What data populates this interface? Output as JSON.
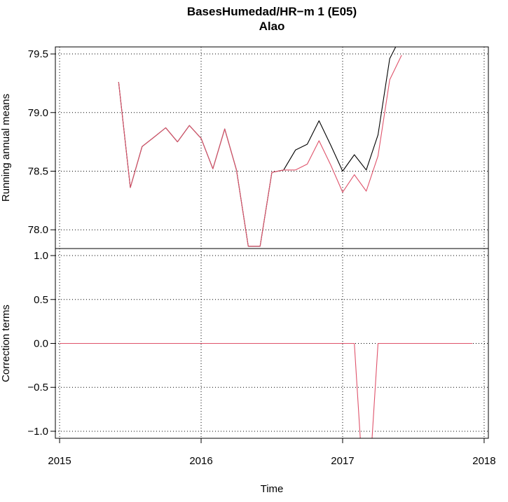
{
  "title": "BasesHumedad/HR−m   1 (E05)",
  "subtitle": "Alao",
  "colors": {
    "raw": "#000000",
    "adjusted": "#DF536B",
    "background": "#FFFFFF",
    "grid": "#000000"
  },
  "chart_data": [
    {
      "type": "line",
      "panel": "top",
      "ylabel": "Running annual means",
      "ylim": [
        77.84,
        79.56
      ],
      "yticks": [
        78.0,
        78.5,
        79.0,
        79.5
      ],
      "ytick_labels": [
        "78.0",
        "78.5",
        "79.0",
        "79.5"
      ],
      "grid": true,
      "series": [
        {
          "color": "#000000",
          "x": [
            2015.417,
            2015.5,
            2015.583,
            2015.667,
            2015.75,
            2015.833,
            2015.917,
            2016.0,
            2016.083,
            2016.167,
            2016.25,
            2016.333,
            2016.417,
            2016.5,
            2016.583,
            2016.667,
            2016.75,
            2016.833,
            2016.917,
            2017.0,
            2017.083,
            2017.167,
            2017.25,
            2017.333,
            2017.375
          ],
          "values": [
            79.26,
            78.36,
            78.71,
            78.79,
            78.87,
            78.75,
            78.89,
            78.78,
            78.52,
            78.86,
            78.51,
            77.86,
            77.86,
            78.49,
            78.51,
            78.68,
            78.73,
            78.93,
            78.72,
            78.5,
            78.64,
            78.51,
            78.81,
            79.46,
            79.56
          ]
        },
        {
          "color": "#DF536B",
          "x": [
            2015.417,
            2015.5,
            2015.583,
            2015.667,
            2015.75,
            2015.833,
            2015.917,
            2016.0,
            2016.083,
            2016.167,
            2016.25,
            2016.333,
            2016.417,
            2016.5,
            2016.583,
            2016.667,
            2016.75,
            2016.833,
            2016.917,
            2017.0,
            2017.083,
            2017.167,
            2017.25,
            2017.333,
            2017.417
          ],
          "values": [
            79.26,
            78.36,
            78.71,
            78.79,
            78.87,
            78.75,
            78.89,
            78.78,
            78.52,
            78.86,
            78.51,
            77.86,
            77.86,
            78.49,
            78.51,
            78.51,
            78.56,
            78.76,
            78.55,
            78.32,
            78.47,
            78.33,
            78.63,
            79.28,
            79.49
          ]
        }
      ]
    },
    {
      "type": "line",
      "panel": "bottom",
      "ylabel": "Correction terms",
      "xlabel": "Time",
      "xlim": [
        2014.97,
        2018.03
      ],
      "ylim": [
        -1.08,
        1.08
      ],
      "xticks": [
        2015,
        2016,
        2017,
        2018
      ],
      "xtick_labels": [
        "2015",
        "2016",
        "2017",
        "2018"
      ],
      "yticks": [
        -1.0,
        -0.5,
        0.0,
        0.5,
        1.0
      ],
      "ytick_labels": [
        "−1.0",
        "−0.5",
        "0.0",
        "0.5",
        "1.0"
      ],
      "grid": true,
      "series": [
        {
          "color": "#DF536B",
          "x": [
            2015.0,
            2017.083,
            2017.125,
            2017.208,
            2017.25,
            2017.917
          ],
          "values": [
            0,
            0,
            -1.08,
            -1.08,
            0,
            0
          ]
        }
      ]
    }
  ]
}
